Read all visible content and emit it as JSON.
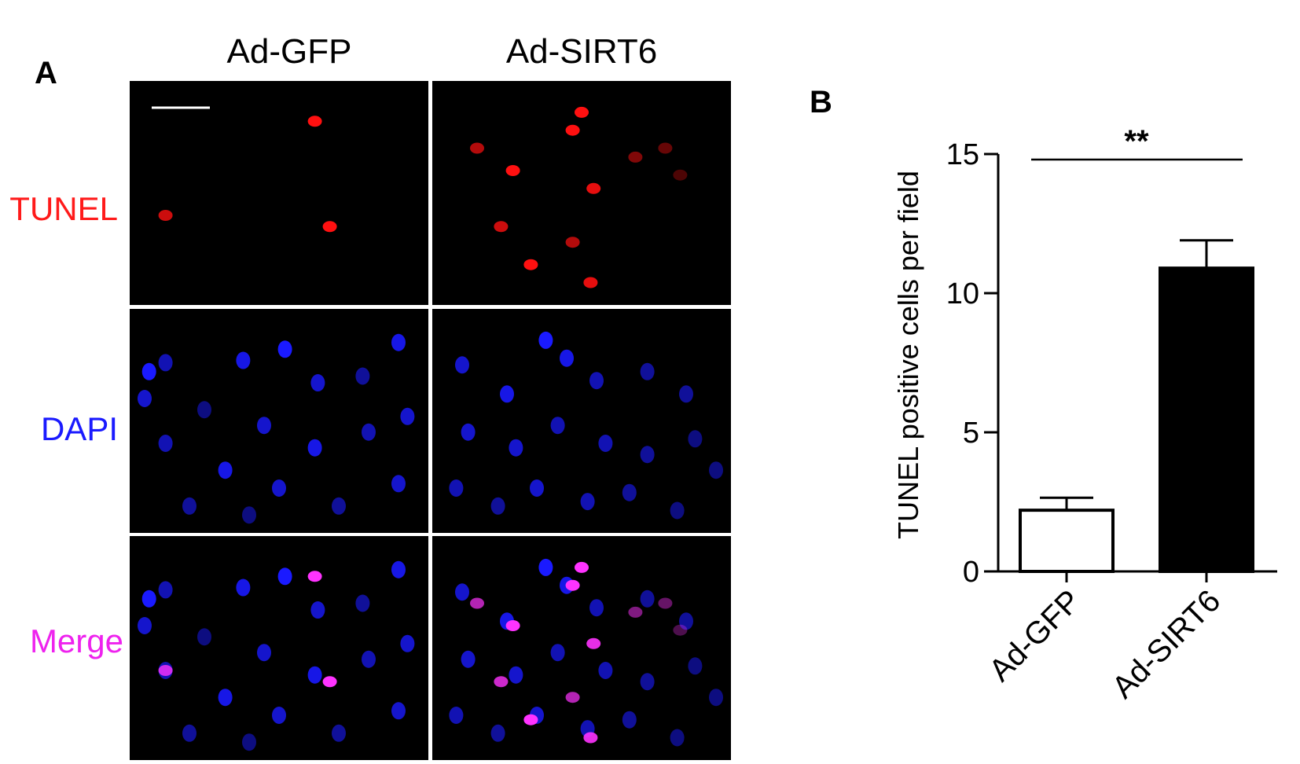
{
  "panel_a": {
    "label": "A",
    "columns": [
      "Ad-GFP",
      "Ad-SIRT6"
    ],
    "rows": [
      {
        "label": "TUNEL",
        "color": "#ff1a1a"
      },
      {
        "label": "DAPI",
        "color": "#1a1aff"
      },
      {
        "label": "Merge",
        "color": "#ee22ee"
      }
    ],
    "cell_colors": {
      "tunel": "#ff1010",
      "dapi": "#1a1aff",
      "merge_overlap": "#ff33ff",
      "panel_bg": "#000000"
    },
    "scale_bar_present": true
  },
  "panel_b": {
    "label": "B",
    "significance": "**"
  },
  "chart_data": {
    "type": "bar",
    "categories": [
      "Ad-GFP",
      "Ad-SIRT6"
    ],
    "values": [
      2.2,
      10.9
    ],
    "errors": [
      0.45,
      1.0
    ],
    "bar_fill": [
      "#ffffff",
      "#000000"
    ],
    "title": "",
    "xlabel": "",
    "ylabel": "TUNEL positive cells per field",
    "ylim": [
      0,
      15
    ],
    "yticks": [
      0,
      5,
      10,
      15
    ],
    "grid": false,
    "legend": "none"
  }
}
